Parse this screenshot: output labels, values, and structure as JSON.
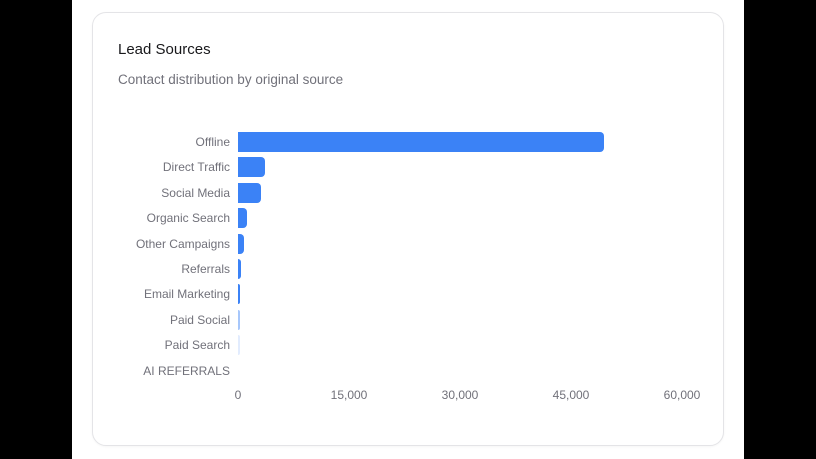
{
  "card": {
    "title": "Lead Sources",
    "subtitle": "Contact distribution by original source"
  },
  "colors": {
    "bar": "#3b82f6",
    "text_muted": "#71717a",
    "title": "#18181b"
  },
  "chart_data": {
    "type": "bar",
    "orientation": "horizontal",
    "title": "Lead Sources",
    "subtitle": "Contact distribution by original source",
    "categories": [
      "Offline",
      "Direct Traffic",
      "Social Media",
      "Organic Search",
      "Other Campaigns",
      "Referrals",
      "Email Marketing",
      "Paid Social",
      "Paid Search",
      "AI REFERRALS"
    ],
    "values": [
      49500,
      3650,
      3100,
      1200,
      800,
      400,
      300,
      100,
      50,
      0
    ],
    "xlabel": "",
    "ylabel": "",
    "xlim": [
      0,
      60000
    ],
    "xticks": [
      "0",
      "15,000",
      "30,000",
      "45,000",
      "60,000"
    ],
    "grid": false,
    "legend": null
  }
}
